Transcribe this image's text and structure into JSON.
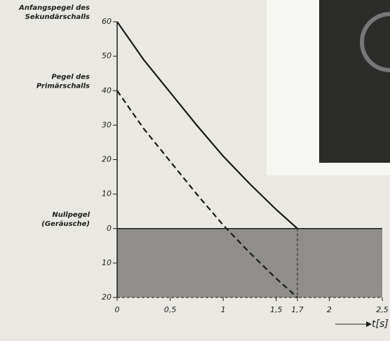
{
  "chart_data": {
    "type": "line",
    "x": [
      0,
      0.25,
      0.5,
      0.75,
      1,
      1.25,
      1.5,
      1.7
    ],
    "series": [
      {
        "color": "#1a1a1a",
        "style": "solid",
        "values": [
          60,
          49,
          39.5,
          30,
          21,
          13,
          5.5,
          0
        ]
      },
      {
        "color": "#1a1a1a",
        "style": "dashed",
        "values": [
          40,
          29,
          19.5,
          10,
          1,
          -7,
          -14.5,
          -20
        ]
      }
    ],
    "xlim": [
      0,
      2.5
    ],
    "xticks": [
      0,
      {
        "value": 0.5,
        "label": "0,5"
      },
      1,
      {
        "value": 1.5,
        "label": "1,5"
      },
      {
        "value": 1.7,
        "label": "1,7"
      },
      2,
      {
        "value": 2.5,
        "label": "2,5"
      }
    ],
    "ylim": [
      -20,
      60
    ],
    "yticks": [
      {
        "value": -20,
        "label": "20"
      },
      {
        "value": -10,
        "label": "10"
      },
      0,
      10,
      20,
      30,
      40,
      50,
      60
    ],
    "xlabel": "t[s]",
    "annotations": [
      {
        "lines": [
          "Anfangspegel des",
          "Sekundärschalls"
        ],
        "y": 60
      },
      {
        "lines": [
          "Pegel des",
          "Primärschalls"
        ],
        "y": 40
      },
      {
        "lines": [
          "Nullpegel",
          "(Geräusche)"
        ],
        "y": 0
      }
    ]
  }
}
